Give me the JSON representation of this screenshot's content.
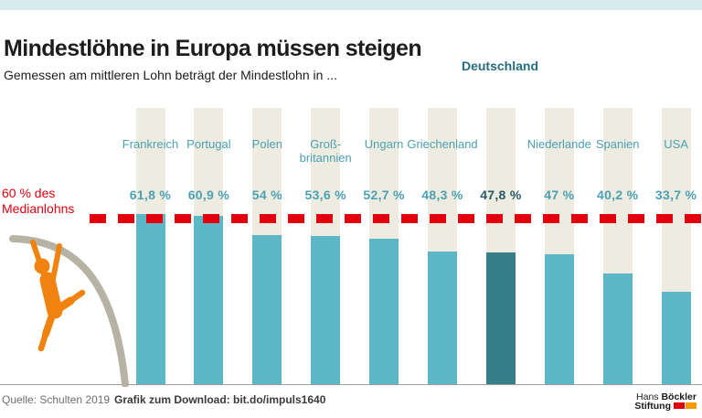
{
  "header": {
    "title": "Mindestlöhne in Europa müssen steigen",
    "subtitle": "Gemessen am mittleren Lohn beträgt der Mindestlohn in ..."
  },
  "chart_data": {
    "type": "bar",
    "title": "Mindestlöhne in Europa müssen steigen",
    "subtitle": "Gemessen am mittleren Lohn beträgt der Mindestlohn in ...",
    "unit": "% des Medianlohns",
    "categories": [
      "Frankreich",
      "Portugal",
      "Polen",
      "Großbritannien",
      "Ungarn",
      "Griechenland",
      "Deutschland",
      "Niederlande",
      "Spanien",
      "USA"
    ],
    "category_display": [
      "Frankreich",
      "Portugal",
      "Polen",
      "Groß-\nbritannien",
      "Ungarn",
      "Griechenland",
      "",
      "Niederlande",
      "Spanien",
      "USA"
    ],
    "values": [
      61.8,
      60.9,
      54,
      53.6,
      52.7,
      48.3,
      47.8,
      47,
      40.2,
      33.7
    ],
    "value_labels": [
      "61,8 %",
      "60,9 %",
      "54 %",
      "53,6 %",
      "52,7 %",
      "48,3 %",
      "47,8 %",
      "47 %",
      "40,2 %",
      "33,7 %"
    ],
    "highlight_index": 6,
    "highlight_heading": "Deutschland",
    "reference_line": {
      "value": 60,
      "label": "60 % des\nMedianlohns"
    },
    "ylim": [
      0,
      100
    ],
    "grid": false,
    "legend_position": "none"
  },
  "footer": {
    "source": "Quelle: Schulten 2019",
    "download": "Grafik zum Download: bit.do/impuls1640"
  },
  "branding": {
    "name_regular": "Hans ",
    "name_bold": "Böckler",
    "line2_bold": "Stiftung"
  },
  "icons": {
    "climber": "pole-vaulter-climbing-icon"
  },
  "colors": {
    "top_strip": "#d6e9ee",
    "bar": "#5cb7c6",
    "bar_highlight": "#377f88",
    "bar_background": "#eeece1",
    "label_teal": "#4ba1b3",
    "highlight_heading": "#256e80",
    "highlight_value": "#265a66",
    "reference_red": "#e2000f",
    "climber_orange": "#f0830f",
    "pole_gray": "#b7b3a4",
    "brand_orange": "#f59b00"
  }
}
